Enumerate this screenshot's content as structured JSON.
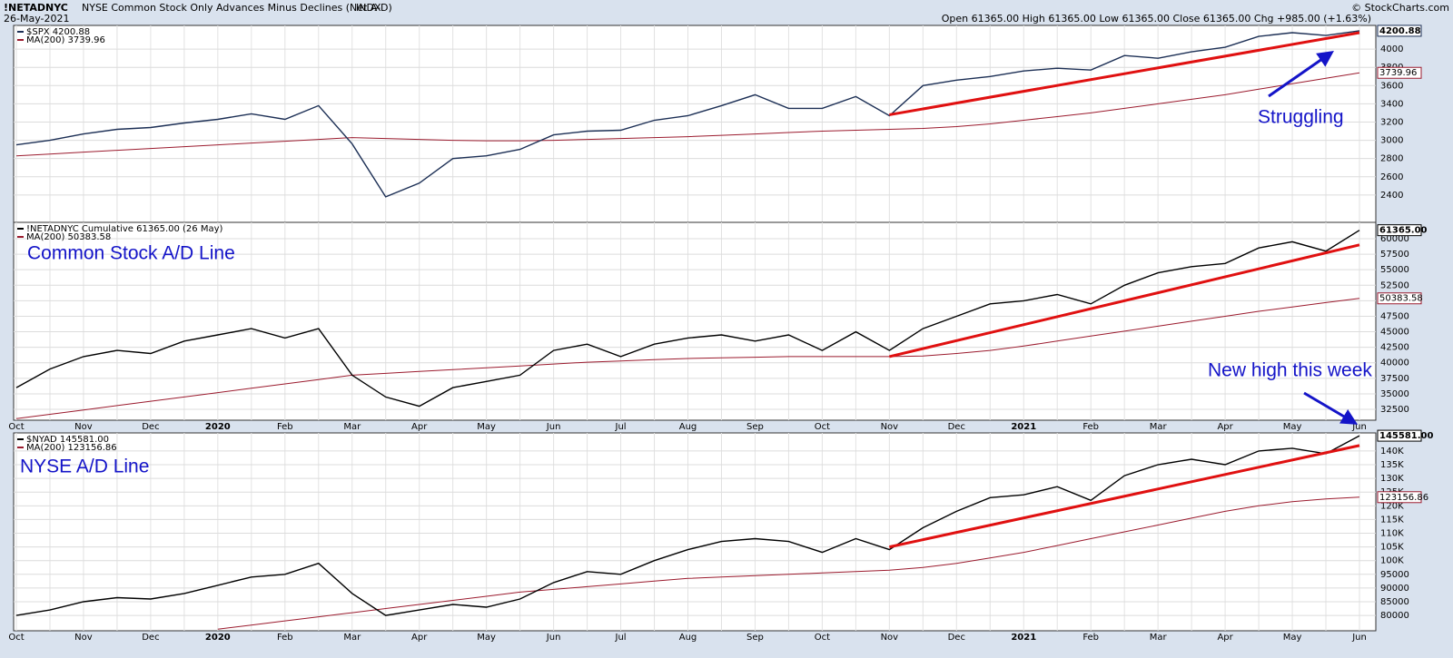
{
  "header": {
    "symbol": "!NETADNYC",
    "title": "NYSE Common Stock Only Advances Minus Declines (Net A-D)",
    "exchange": "INDX",
    "date": "26-May-2021",
    "quote": "Open 61365.00 High 61365.00 Low 61365.00 Close 61365.00 Chg +985.00 (+1.63%)",
    "credit": "© StockCharts.com"
  },
  "chart_data": [
    {
      "type": "line",
      "grid": true,
      "series": [
        {
          "name": "$SPX 4200.88",
          "color": "#1c2f55",
          "values": [
            2950,
            3000,
            3070,
            3120,
            3140,
            3190,
            3230,
            3290,
            3230,
            3380,
            2960,
            2380,
            2530,
            2800,
            2830,
            2900,
            3060,
            3100,
            3110,
            3220,
            3270,
            3380,
            3500,
            3350,
            3350,
            3480,
            3270,
            3600,
            3660,
            3700,
            3760,
            3790,
            3770,
            3930,
            3900,
            3970,
            4020,
            4140,
            4180,
            4150,
            4200.88
          ]
        },
        {
          "name": "MA(200) 3739.96",
          "color": "#9b1b2e",
          "values": [
            2830,
            2850,
            2870,
            2890,
            2910,
            2930,
            2950,
            2970,
            2990,
            3010,
            3030,
            3020,
            3010,
            3000,
            2995,
            2995,
            3000,
            3010,
            3020,
            3030,
            3040,
            3055,
            3070,
            3085,
            3100,
            3110,
            3120,
            3130,
            3150,
            3180,
            3220,
            3260,
            3300,
            3350,
            3400,
            3450,
            3500,
            3560,
            3620,
            3680,
            3739.96
          ]
        }
      ],
      "ylim": [
        2100,
        4260
      ],
      "yticks": [
        2400,
        2600,
        2800,
        3000,
        3200,
        3400,
        3600,
        3800,
        4000
      ],
      "trendline": {
        "x": [
          26,
          40
        ],
        "values": [
          3280,
          4180
        ],
        "color": "#e01010"
      },
      "annotations": [
        "Struggling"
      ]
    },
    {
      "type": "line",
      "grid": true,
      "categories": [
        "Oct",
        null,
        "Nov",
        null,
        "Dec",
        null,
        "2020",
        null,
        "Feb",
        null,
        "Mar",
        null,
        "Apr",
        null,
        "May",
        null,
        "Jun",
        null,
        "Jul",
        null,
        "Aug",
        null,
        "Sep",
        null,
        "Oct",
        null,
        "Nov",
        null,
        "Dec",
        null,
        "2021",
        null,
        "Feb",
        null,
        "Mar",
        null,
        "Apr",
        null,
        "May",
        null,
        "Jun"
      ],
      "series": [
        {
          "name": "!NETADNYC Cumulative 61365.00 (26 May)",
          "color": "#000000",
          "values": [
            36000,
            39000,
            41000,
            42000,
            41500,
            43500,
            44500,
            45500,
            44000,
            45500,
            38000,
            34500,
            33000,
            36000,
            37000,
            38000,
            42000,
            43000,
            41000,
            43000,
            44000,
            44500,
            43500,
            44500,
            42000,
            45000,
            42000,
            45500,
            47500,
            49500,
            50000,
            51000,
            49500,
            52500,
            54500,
            55500,
            56000,
            58500,
            59500,
            58000,
            61365
          ],
          "value_labels": [
            null,
            null,
            null,
            null,
            null,
            null,
            null,
            null,
            null,
            null,
            null,
            null,
            null,
            null,
            null,
            null,
            null,
            null,
            null,
            null,
            null,
            null,
            null,
            null,
            null,
            null,
            null,
            null,
            null,
            null,
            null,
            null,
            null,
            null,
            null,
            null,
            null,
            null,
            null,
            null,
            "61365.00"
          ]
        },
        {
          "name": "MA(200) 50383.58",
          "color": "#9b1b2e",
          "values": [
            31000,
            31700,
            32400,
            33100,
            33800,
            34500,
            35200,
            35900,
            36600,
            37300,
            38000,
            38300,
            38600,
            38900,
            39200,
            39500,
            39800,
            40100,
            40300,
            40500,
            40700,
            40800,
            40900,
            41000,
            41000,
            41000,
            41000,
            41100,
            41500,
            42000,
            42700,
            43500,
            44300,
            45100,
            45900,
            46700,
            47500,
            48300,
            49000,
            49700,
            50383.58
          ]
        }
      ],
      "ylim": [
        30750,
        62630
      ],
      "yticks": [
        32500,
        35000,
        37500,
        40000,
        42500,
        45000,
        47500,
        50000,
        52500,
        55000,
        57500,
        60000
      ],
      "trendline": {
        "x": [
          26,
          40
        ],
        "values": [
          41000,
          59000
        ],
        "color": "#e01010"
      },
      "annotations": [
        "Common Stock A/D Line",
        "New high this week"
      ]
    },
    {
      "type": "line",
      "grid": true,
      "categories": [
        "Oct",
        null,
        "Nov",
        null,
        "Dec",
        null,
        "2020",
        null,
        "Feb",
        null,
        "Mar",
        null,
        "Apr",
        null,
        "May",
        null,
        "Jun",
        null,
        "Jul",
        null,
        "Aug",
        null,
        "Sep",
        null,
        "Oct",
        null,
        "Nov",
        null,
        "Dec",
        null,
        "2021",
        null,
        "Feb",
        null,
        "Mar",
        null,
        "Apr",
        null,
        "May",
        null,
        "Jun"
      ],
      "series": [
        {
          "name": "$NYAD 145581.00",
          "color": "#000000",
          "values": [
            80000,
            82000,
            85000,
            86500,
            86000,
            88000,
            91000,
            94000,
            95000,
            99000,
            88000,
            80000,
            82000,
            84000,
            83000,
            86000,
            92000,
            96000,
            95000,
            100000,
            104000,
            107000,
            108000,
            107000,
            103000,
            108000,
            104000,
            112000,
            118000,
            123000,
            124000,
            127000,
            122000,
            131000,
            135000,
            137000,
            135000,
            140000,
            141000,
            139000,
            145581
          ],
          "value_labels": [
            null,
            null,
            null,
            null,
            null,
            null,
            null,
            null,
            null,
            null,
            null,
            null,
            null,
            null,
            null,
            null,
            null,
            null,
            null,
            null,
            null,
            null,
            null,
            null,
            null,
            null,
            null,
            null,
            null,
            null,
            null,
            null,
            null,
            null,
            null,
            null,
            null,
            null,
            null,
            null,
            "145581.00"
          ]
        },
        {
          "name": "MA(200) 123156.86",
          "color": "#9b1b2e",
          "values": [
            null,
            null,
            null,
            null,
            null,
            null,
            75000,
            76500,
            78000,
            79500,
            81000,
            82500,
            84000,
            85500,
            87000,
            88500,
            89500,
            90500,
            91500,
            92500,
            93500,
            94000,
            94500,
            95000,
            95500,
            96000,
            96500,
            97500,
            99000,
            101000,
            103000,
            105500,
            108000,
            110500,
            113000,
            115500,
            118000,
            120000,
            121500,
            122500,
            123156.86
          ]
        }
      ],
      "ylim": [
        74400,
        146600
      ],
      "yticks": [
        80000,
        85000,
        90000,
        95000,
        {
          "value": 100000,
          "label": "100K"
        },
        {
          "value": 105000,
          "label": "105K"
        },
        {
          "value": 110000,
          "label": "110K"
        },
        {
          "value": 115000,
          "label": "115K"
        },
        {
          "value": 120000,
          "label": "120K"
        },
        {
          "value": 125000,
          "label": "125K"
        },
        {
          "value": 130000,
          "label": "130K"
        },
        {
          "value": 135000,
          "label": "135K"
        },
        {
          "value": 140000,
          "label": "140K"
        }
      ],
      "trendline": {
        "x": [
          26,
          40
        ],
        "values": [
          105000,
          142000
        ],
        "color": "#e01010"
      },
      "annotations": [
        "NYSE A/D Line"
      ]
    }
  ]
}
